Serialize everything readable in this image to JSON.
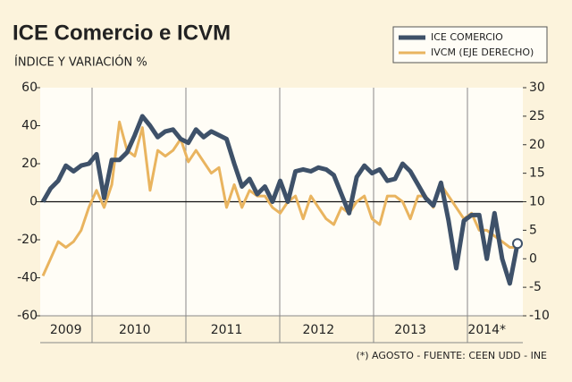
{
  "chart_data": {
    "type": "line",
    "title": "ICE Comercio e ICVM",
    "subtitle": "ÍNDICE Y VARIACIÓN %",
    "note": "(*) AGOSTO - FUENTE: CEEN UDD - INE",
    "categories": [
      null,
      null,
      null,
      "2009",
      null,
      null,
      null,
      null,
      null,
      null,
      null,
      null,
      "2010",
      null,
      null,
      null,
      null,
      null,
      null,
      null,
      null,
      null,
      null,
      null,
      "2011",
      null,
      null,
      null,
      null,
      null,
      null,
      null,
      null,
      null,
      null,
      null,
      "2012",
      null,
      null,
      null,
      null,
      null,
      null,
      null,
      null,
      null,
      null,
      null,
      "2013",
      null,
      null,
      null,
      null,
      null,
      null,
      null,
      null,
      null,
      "2014*",
      null,
      null,
      null,
      null
    ],
    "series": [
      {
        "name": "ICE COMERCIO",
        "color": "#3e5169",
        "values": [
          0,
          7,
          11,
          19,
          16,
          19,
          20,
          25,
          2,
          22,
          22,
          26,
          35,
          45,
          40,
          34,
          37,
          38,
          33,
          31,
          38,
          34,
          37,
          35,
          33,
          20,
          8,
          12,
          4,
          8,
          0,
          11,
          0,
          16,
          17,
          16,
          18,
          17,
          14,
          4,
          -6,
          13,
          19,
          15,
          17,
          11,
          12,
          20,
          16,
          9,
          2,
          -2,
          10,
          -10,
          -35,
          -10,
          -7,
          -7,
          -30,
          -6,
          -30,
          -43,
          -22
        ]
      },
      {
        "name": "IVCM (EJE DERECHO)",
        "color": "#e9b45f",
        "axis": "y2",
        "values": [
          -3,
          0,
          3,
          2,
          3,
          5,
          9,
          12,
          9,
          13,
          24,
          19,
          18,
          23,
          12,
          19,
          18,
          19,
          21,
          17,
          19,
          17,
          15,
          16,
          9,
          13,
          9,
          12,
          11,
          11,
          9,
          8,
          10,
          11,
          7,
          11,
          9,
          7,
          6,
          9,
          8,
          10,
          11,
          7,
          6,
          11,
          11,
          10,
          7,
          11,
          11,
          9,
          13,
          11,
          9,
          7,
          8,
          5,
          5,
          4,
          3,
          2,
          2
        ]
      }
    ],
    "ylim": [
      -60,
      60
    ],
    "yticks": [
      -60,
      -40,
      -20,
      0,
      20,
      40,
      60
    ],
    "y2lim": [
      -10,
      30
    ],
    "y2ticks": [
      -10,
      -5,
      0,
      5,
      10,
      15,
      20,
      25,
      30
    ]
  }
}
